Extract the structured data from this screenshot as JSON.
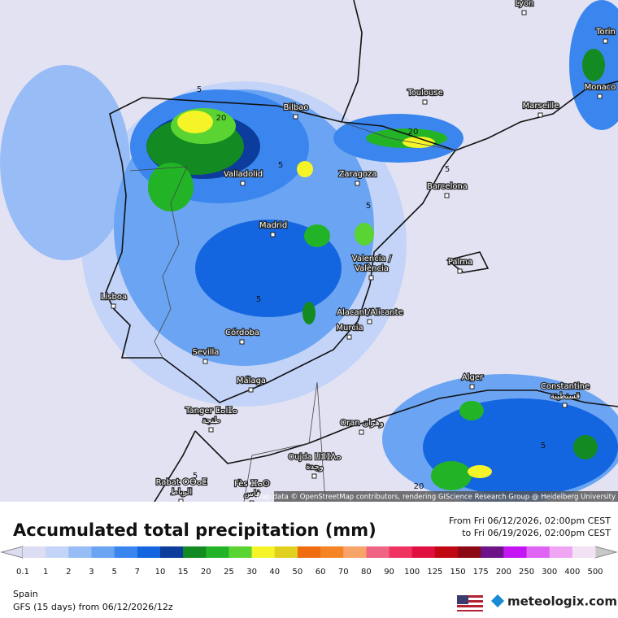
{
  "map": {
    "cities": [
      {
        "lines": [
          "Lyon"
        ]
      },
      {
        "lines": [
          "Torin"
        ]
      },
      {
        "lines": [
          "Monaco"
        ]
      },
      {
        "lines": [
          "Toulouse"
        ]
      },
      {
        "lines": [
          "Marseille"
        ]
      },
      {
        "lines": [
          "Bilbao"
        ]
      },
      {
        "lines": [
          "Valladolid"
        ]
      },
      {
        "lines": [
          "Zaragoza"
        ]
      },
      {
        "lines": [
          "Barcelona"
        ]
      },
      {
        "lines": [
          "Madrid"
        ]
      },
      {
        "lines": [
          "Valencia /",
          "València"
        ]
      },
      {
        "lines": [
          "Palma"
        ]
      },
      {
        "lines": [
          "Lisboa"
        ]
      },
      {
        "lines": [
          "Alacant/Alicante"
        ]
      },
      {
        "lines": [
          "Murcia"
        ]
      },
      {
        "lines": [
          "Córdoba"
        ]
      },
      {
        "lines": [
          "Sevilla"
        ]
      },
      {
        "lines": [
          "Málaga"
        ]
      },
      {
        "lines": [
          "Alger"
        ]
      },
      {
        "lines": [
          "Constantine",
          "قسنطينة"
        ]
      },
      {
        "lines": [
          "Tanger ⵟⴰⵏⵊⴰ",
          "طنجة"
        ]
      },
      {
        "lines": [
          "Oran وهران"
        ]
      },
      {
        "lines": [
          "Oujda ⵡⴻⵊⴷⴰ",
          "وجدة"
        ]
      },
      {
        "lines": [
          "Rabat ⵔⴱⴰⵟ",
          "الرباط"
        ]
      },
      {
        "lines": [
          "Fès ⴼⴰⵙ",
          "فاس"
        ]
      }
    ],
    "contour_labels": [
      5,
      20,
      5,
      20,
      5,
      5,
      5,
      5,
      5,
      20
    ],
    "attribution": "Map data © OpenStreetMap contributors, rendering GIScience Research Group @ Heidelberg University"
  },
  "title": "Accumulated total precipitation (mm)",
  "period": {
    "from": "From Fri 06/12/2026, 02:00pm CEST",
    "to": "to Fri 06/19/2026, 02:00pm CEST"
  },
  "legend": {
    "levels": [
      {
        "value": 0.1,
        "color": "#dcdcf2"
      },
      {
        "value": 1,
        "color": "#c4d4f8"
      },
      {
        "value": 2,
        "color": "#98bcf6"
      },
      {
        "value": 3,
        "color": "#6aa4f2"
      },
      {
        "value": 5,
        "color": "#3a86ee"
      },
      {
        "value": 7,
        "color": "#1466e0"
      },
      {
        "value": 10,
        "color": "#0c3c9c"
      },
      {
        "value": 15,
        "color": "#148a22"
      },
      {
        "value": 20,
        "color": "#22b426"
      },
      {
        "value": 25,
        "color": "#5ad432"
      },
      {
        "value": 30,
        "color": "#f4f428"
      },
      {
        "value": 40,
        "color": "#e2d020"
      },
      {
        "value": 50,
        "color": "#f06c10"
      },
      {
        "value": 60,
        "color": "#f48424"
      },
      {
        "value": 70,
        "color": "#f8a468"
      },
      {
        "value": 80,
        "color": "#f06484"
      },
      {
        "value": 90,
        "color": "#f03462"
      },
      {
        "value": 100,
        "color": "#e01040"
      },
      {
        "value": 125,
        "color": "#c00812"
      },
      {
        "value": 150,
        "color": "#8c0814"
      },
      {
        "value": 175,
        "color": "#6c1488"
      },
      {
        "value": 200,
        "color": "#c414f4"
      },
      {
        "value": 250,
        "color": "#e064f4"
      },
      {
        "value": 300,
        "color": "#f0a4f4"
      },
      {
        "value": 400,
        "color": "#f2e2f4"
      },
      {
        "value": 500,
        "color": "#c8c8c8"
      }
    ]
  },
  "footer": {
    "region": "Spain",
    "model": "GFS (15 days) from  06/12/2026/12z",
    "brand": "meteologix.com"
  }
}
